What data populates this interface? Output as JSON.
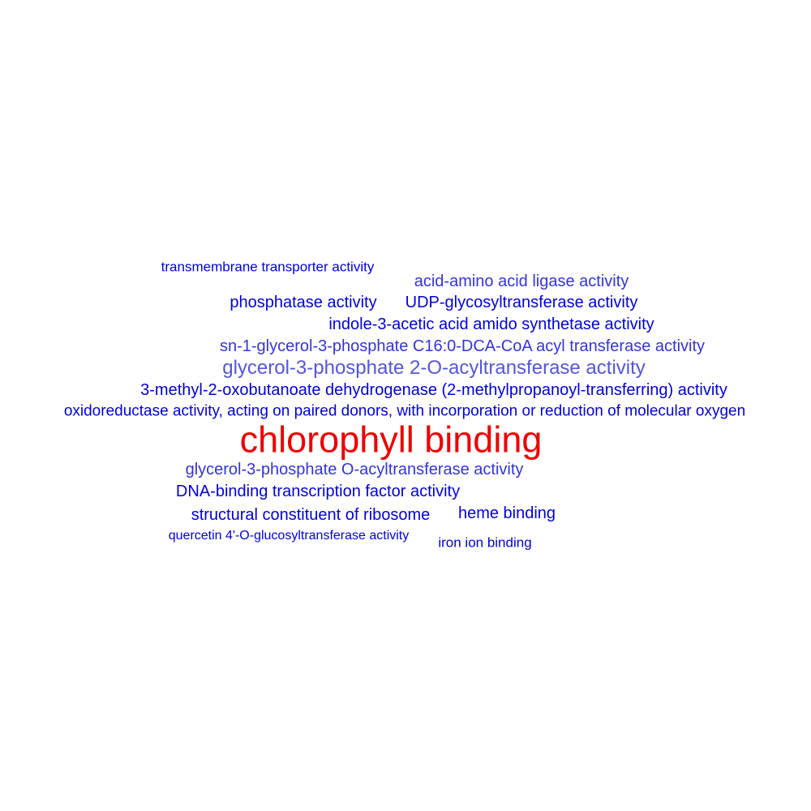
{
  "colors": {
    "background": "#ffffff",
    "top_term": "#ee0000",
    "strong": "#0000dd",
    "medium": "#3333dd",
    "light": "#5555dd"
  },
  "terms": [
    {
      "id": "transmembrane-transporter-activity",
      "text": "transmembrane transporter activity",
      "color": "#0000dd"
    },
    {
      "id": "acid-amino-acid-ligase-activity",
      "text": "acid-amino acid ligase activity",
      "color": "#3333dd"
    },
    {
      "id": "phosphatase-activity",
      "text": "phosphatase activity",
      "color": "#0000dd"
    },
    {
      "id": "udp-glycosyltransferase-activity",
      "text": "UDP-glycosyltransferase activity",
      "color": "#0000dd"
    },
    {
      "id": "indole-3-acetic-acid-amido-synthetase-activity",
      "text": "indole-3-acetic acid amido synthetase activity",
      "color": "#0000dd"
    },
    {
      "id": "sn-1-glycerol-3-phosphate-acyl-transferase-activity",
      "text": "sn-1-glycerol-3-phosphate C16:0-DCA-CoA acyl transferase activity",
      "color": "#3333dd"
    },
    {
      "id": "glycerol-3-phosphate-2-o-acyltransferase-activity",
      "text": "glycerol-3-phosphate 2-O-acyltransferase activity",
      "color": "#5555dd"
    },
    {
      "id": "3-methyl-2-oxobutanoate-dehydrogenase-activity",
      "text": "3-methyl-2-oxobutanoate dehydrogenase (2-methylpropanoyl-transferring) activity",
      "color": "#0000dd"
    },
    {
      "id": "oxidoreductase-activity-paired-donors",
      "text": "oxidoreductase activity, acting on paired donors, with incorporation or reduction of molecular oxygen",
      "color": "#0000dd"
    },
    {
      "id": "chlorophyll-binding",
      "text": "chlorophyll binding",
      "color": "#ee0000"
    },
    {
      "id": "glycerol-3-phosphate-o-acyltransferase-activity",
      "text": "glycerol-3-phosphate O-acyltransferase activity",
      "color": "#3333dd"
    },
    {
      "id": "dna-binding-transcription-factor-activity",
      "text": "DNA-binding transcription factor activity",
      "color": "#0000dd"
    },
    {
      "id": "structural-constituent-of-ribosome",
      "text": "structural constituent of ribosome",
      "color": "#0000dd"
    },
    {
      "id": "heme-binding",
      "text": "heme binding",
      "color": "#0000dd"
    },
    {
      "id": "quercetin-4-o-glucosyltransferase-activity",
      "text": "quercetin 4'-O-glucosyltransferase activity",
      "color": "#0000dd"
    },
    {
      "id": "iron-ion-binding",
      "text": "iron ion binding",
      "color": "#0000dd"
    }
  ]
}
